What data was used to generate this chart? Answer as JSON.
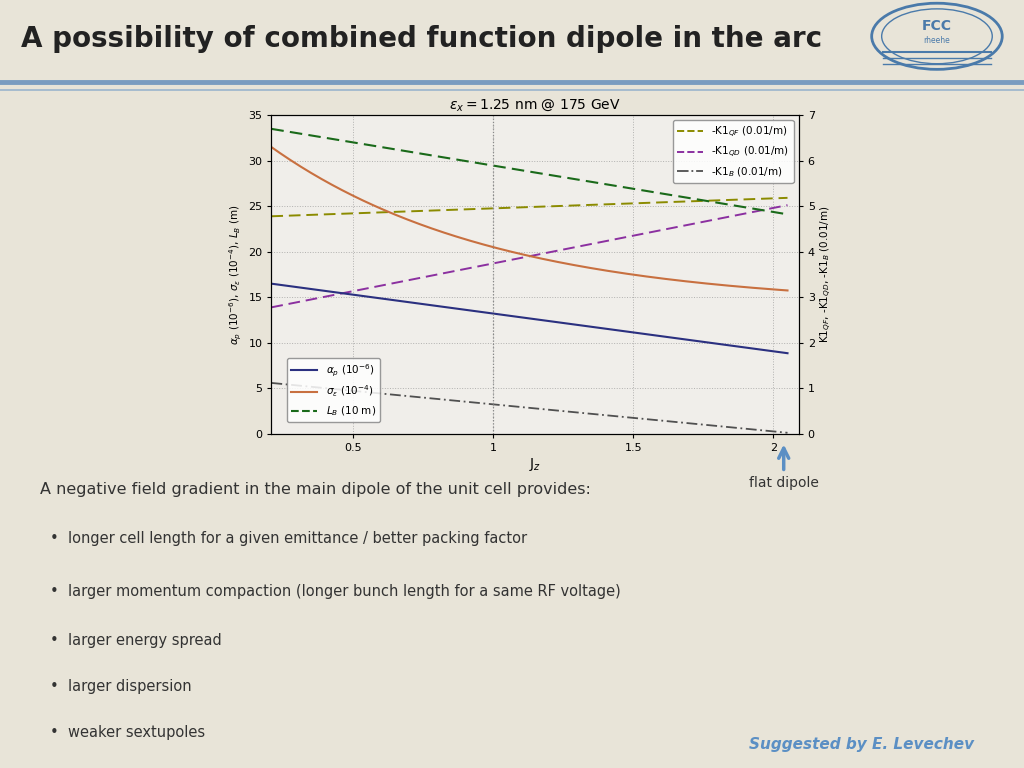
{
  "title": "A possibility of combined function dipole in the arc",
  "slide_bg": "#e8e4d8",
  "title_color": "#222222",
  "title_fontsize": 20,
  "separator_color1": "#7a9cc0",
  "separator_color2": "#9ab4cc",
  "plot_subtitle": "$\\varepsilon_x = 1.25$ nm @ 175 GeV",
  "xlabel": "J$_z$",
  "ylabel_left": "$\\alpha_p$ (10$^{-6}$), $\\sigma_\\varepsilon$ (10$^{-4}$), $L_B$ (m)",
  "ylabel_right": "K1$_{QF}$, -K1$_{QD}$, -K1$_B$ (0.01/m)",
  "xlim": [
    0.21,
    2.09
  ],
  "ylim_left": [
    0,
    35
  ],
  "ylim_right": [
    0,
    7
  ],
  "plot_bg": "#f0eeea",
  "plot_border_bg": "#c8c4b8",
  "body_text": "A negative field gradient in the main dipole of the unit cell provides:",
  "bullets": [
    "longer cell length for a given emittance / better packing factor",
    "larger momentum compaction (longer bunch length for a same RF voltage)",
    "larger energy spread",
    "larger dispersion",
    "weaker sextupoles"
  ],
  "suggested_by": "Suggested by E. Levechev",
  "flat_dipole_label": "flat dipole",
  "arrow_color": "#5b8fc4",
  "alpha_p_color": "#2b3080",
  "sigma_e_color": "#c87040",
  "L_B_color": "#1a6a1a",
  "K1QF_color": "#8b8b00",
  "K1QD_color": "#8b30a0",
  "K1B_color": "#505050"
}
